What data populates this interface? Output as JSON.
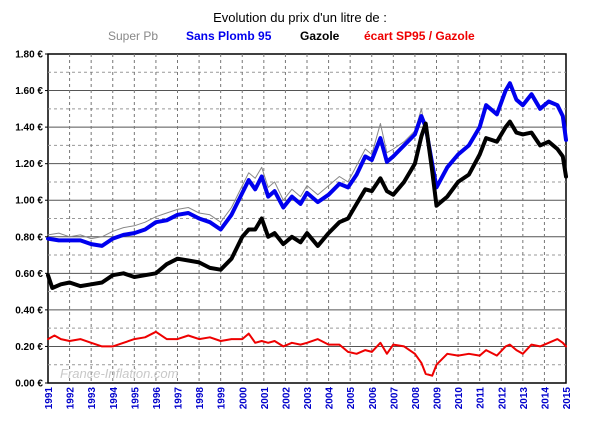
{
  "chart_data": {
    "type": "line",
    "title": "Evolution  du prix d'un litre de :",
    "legend": [
      "Super Pb",
      "Sans Plomb 95",
      "Gazole",
      "écart SP95 / Gazole"
    ],
    "y_ticks": [
      "0.00 €",
      "0.20 €",
      "0.40 €",
      "0.60 €",
      "0.80 €",
      "1.00 €",
      "1.20 €",
      "1.40 €",
      "1.60 €",
      "1.80 €"
    ],
    "x_ticks": [
      "1991",
      "1992",
      "1993",
      "1994",
      "1995",
      "1996",
      "1997",
      "1998",
      "1999",
      "2000",
      "2001",
      "2002",
      "2003",
      "2004",
      "2005",
      "2006",
      "2007",
      "2008",
      "2009",
      "2010",
      "2011",
      "2012",
      "2013",
      "2014",
      "2015"
    ],
    "xlim": [
      1991,
      2015
    ],
    "ylim": [
      0,
      1.8
    ],
    "grid": true,
    "legend_position": "top",
    "watermark": "France-Inflation.com",
    "series": [
      {
        "name": "Super Pb",
        "color": "#888888",
        "width": 1,
        "points": [
          [
            1991.0,
            0.81
          ],
          [
            1991.5,
            0.82
          ],
          [
            1992.0,
            0.8
          ],
          [
            1992.5,
            0.81
          ],
          [
            1993.0,
            0.79
          ],
          [
            1993.5,
            0.8
          ],
          [
            1994.0,
            0.83
          ],
          [
            1994.5,
            0.85
          ],
          [
            1995.0,
            0.86
          ],
          [
            1995.5,
            0.88
          ],
          [
            1996.0,
            0.91
          ],
          [
            1996.5,
            0.93
          ],
          [
            1997.0,
            0.95
          ],
          [
            1997.5,
            0.96
          ],
          [
            1998.0,
            0.93
          ],
          [
            1998.5,
            0.92
          ],
          [
            1999.0,
            0.88
          ],
          [
            1999.5,
            0.96
          ],
          [
            2000.0,
            1.08
          ],
          [
            2000.3,
            1.15
          ],
          [
            2000.6,
            1.12
          ],
          [
            2000.9,
            1.18
          ],
          [
            2001.2,
            1.07
          ],
          [
            2001.5,
            1.1
          ],
          [
            2001.9,
            1.0
          ],
          [
            2002.3,
            1.06
          ],
          [
            2002.7,
            1.02
          ],
          [
            2003.0,
            1.08
          ],
          [
            2003.5,
            1.03
          ],
          [
            2004.0,
            1.08
          ],
          [
            2004.5,
            1.13
          ],
          [
            2004.9,
            1.1
          ],
          [
            2005.3,
            1.19
          ],
          [
            2005.7,
            1.28
          ],
          [
            2006.0,
            1.25
          ],
          [
            2006.4,
            1.42
          ],
          [
            2006.7,
            1.26
          ],
          [
            2007.0,
            1.28
          ],
          [
            2007.5,
            1.32
          ],
          [
            2008.0,
            1.38
          ],
          [
            2008.3,
            1.5
          ],
          [
            2008.6,
            1.3
          ]
        ]
      },
      {
        "name": "Sans Plomb 95",
        "color": "#0000ee",
        "width": 4,
        "points": [
          [
            1991.0,
            0.79
          ],
          [
            1991.5,
            0.78
          ],
          [
            1992.0,
            0.78
          ],
          [
            1992.5,
            0.78
          ],
          [
            1993.0,
            0.76
          ],
          [
            1993.5,
            0.75
          ],
          [
            1994.0,
            0.79
          ],
          [
            1994.5,
            0.81
          ],
          [
            1995.0,
            0.82
          ],
          [
            1995.5,
            0.84
          ],
          [
            1996.0,
            0.88
          ],
          [
            1996.5,
            0.89
          ],
          [
            1997.0,
            0.92
          ],
          [
            1997.5,
            0.93
          ],
          [
            1998.0,
            0.9
          ],
          [
            1998.5,
            0.88
          ],
          [
            1999.0,
            0.84
          ],
          [
            1999.5,
            0.92
          ],
          [
            2000.0,
            1.04
          ],
          [
            2000.3,
            1.11
          ],
          [
            2000.6,
            1.06
          ],
          [
            2000.9,
            1.13
          ],
          [
            2001.2,
            1.02
          ],
          [
            2001.5,
            1.05
          ],
          [
            2001.9,
            0.96
          ],
          [
            2002.3,
            1.02
          ],
          [
            2002.7,
            0.98
          ],
          [
            2003.0,
            1.04
          ],
          [
            2003.5,
            0.99
          ],
          [
            2004.0,
            1.03
          ],
          [
            2004.5,
            1.09
          ],
          [
            2004.9,
            1.07
          ],
          [
            2005.3,
            1.14
          ],
          [
            2005.7,
            1.24
          ],
          [
            2006.0,
            1.22
          ],
          [
            2006.4,
            1.34
          ],
          [
            2006.7,
            1.21
          ],
          [
            2007.0,
            1.24
          ],
          [
            2007.5,
            1.3
          ],
          [
            2008.0,
            1.36
          ],
          [
            2008.3,
            1.46
          ],
          [
            2008.5,
            1.4
          ],
          [
            2008.8,
            1.2
          ],
          [
            2009.0,
            1.07
          ],
          [
            2009.5,
            1.18
          ],
          [
            2010.0,
            1.25
          ],
          [
            2010.5,
            1.3
          ],
          [
            2011.0,
            1.4
          ],
          [
            2011.3,
            1.52
          ],
          [
            2011.8,
            1.47
          ],
          [
            2012.2,
            1.6
          ],
          [
            2012.4,
            1.64
          ],
          [
            2012.7,
            1.55
          ],
          [
            2013.0,
            1.52
          ],
          [
            2013.4,
            1.58
          ],
          [
            2013.8,
            1.5
          ],
          [
            2014.2,
            1.54
          ],
          [
            2014.6,
            1.52
          ],
          [
            2014.85,
            1.46
          ],
          [
            2015.0,
            1.33
          ]
        ]
      },
      {
        "name": "Gazole",
        "color": "#000000",
        "width": 4,
        "points": [
          [
            1991.0,
            0.59
          ],
          [
            1991.2,
            0.52
          ],
          [
            1991.6,
            0.54
          ],
          [
            1992.0,
            0.55
          ],
          [
            1992.5,
            0.53
          ],
          [
            1993.0,
            0.54
          ],
          [
            1993.5,
            0.55
          ],
          [
            1994.0,
            0.59
          ],
          [
            1994.5,
            0.6
          ],
          [
            1995.0,
            0.58
          ],
          [
            1995.5,
            0.59
          ],
          [
            1996.0,
            0.6
          ],
          [
            1996.5,
            0.65
          ],
          [
            1997.0,
            0.68
          ],
          [
            1997.5,
            0.67
          ],
          [
            1998.0,
            0.66
          ],
          [
            1998.5,
            0.63
          ],
          [
            1999.0,
            0.62
          ],
          [
            1999.5,
            0.68
          ],
          [
            2000.0,
            0.8
          ],
          [
            2000.3,
            0.84
          ],
          [
            2000.6,
            0.84
          ],
          [
            2000.9,
            0.9
          ],
          [
            2001.2,
            0.8
          ],
          [
            2001.5,
            0.82
          ],
          [
            2001.9,
            0.76
          ],
          [
            2002.3,
            0.8
          ],
          [
            2002.7,
            0.77
          ],
          [
            2003.0,
            0.82
          ],
          [
            2003.5,
            0.75
          ],
          [
            2004.0,
            0.82
          ],
          [
            2004.5,
            0.88
          ],
          [
            2004.9,
            0.9
          ],
          [
            2005.3,
            0.98
          ],
          [
            2005.7,
            1.06
          ],
          [
            2006.0,
            1.05
          ],
          [
            2006.4,
            1.12
          ],
          [
            2006.7,
            1.05
          ],
          [
            2007.0,
            1.03
          ],
          [
            2007.5,
            1.1
          ],
          [
            2008.0,
            1.2
          ],
          [
            2008.3,
            1.35
          ],
          [
            2008.5,
            1.42
          ],
          [
            2008.8,
            1.16
          ],
          [
            2009.0,
            0.97
          ],
          [
            2009.5,
            1.02
          ],
          [
            2010.0,
            1.1
          ],
          [
            2010.5,
            1.14
          ],
          [
            2011.0,
            1.25
          ],
          [
            2011.3,
            1.34
          ],
          [
            2011.8,
            1.32
          ],
          [
            2012.2,
            1.4
          ],
          [
            2012.4,
            1.43
          ],
          [
            2012.7,
            1.37
          ],
          [
            2013.0,
            1.36
          ],
          [
            2013.4,
            1.37
          ],
          [
            2013.8,
            1.3
          ],
          [
            2014.2,
            1.32
          ],
          [
            2014.6,
            1.28
          ],
          [
            2014.85,
            1.24
          ],
          [
            2015.0,
            1.13
          ]
        ]
      },
      {
        "name": "écart SP95 / Gazole",
        "color": "#ee0000",
        "width": 2,
        "points": [
          [
            1991.0,
            0.24
          ],
          [
            1991.3,
            0.26
          ],
          [
            1991.6,
            0.24
          ],
          [
            1992.0,
            0.23
          ],
          [
            1992.5,
            0.24
          ],
          [
            1993.0,
            0.22
          ],
          [
            1993.5,
            0.2
          ],
          [
            1994.0,
            0.2
          ],
          [
            1994.5,
            0.22
          ],
          [
            1995.0,
            0.24
          ],
          [
            1995.5,
            0.25
          ],
          [
            1996.0,
            0.28
          ],
          [
            1996.5,
            0.24
          ],
          [
            1997.0,
            0.24
          ],
          [
            1997.5,
            0.26
          ],
          [
            1998.0,
            0.24
          ],
          [
            1998.5,
            0.25
          ],
          [
            1999.0,
            0.23
          ],
          [
            1999.5,
            0.24
          ],
          [
            2000.0,
            0.24
          ],
          [
            2000.3,
            0.27
          ],
          [
            2000.6,
            0.22
          ],
          [
            2000.9,
            0.23
          ],
          [
            2001.2,
            0.22
          ],
          [
            2001.5,
            0.23
          ],
          [
            2001.9,
            0.2
          ],
          [
            2002.3,
            0.22
          ],
          [
            2002.7,
            0.21
          ],
          [
            2003.0,
            0.22
          ],
          [
            2003.5,
            0.24
          ],
          [
            2004.0,
            0.21
          ],
          [
            2004.5,
            0.21
          ],
          [
            2004.9,
            0.17
          ],
          [
            2005.3,
            0.16
          ],
          [
            2005.7,
            0.18
          ],
          [
            2006.0,
            0.17
          ],
          [
            2006.4,
            0.22
          ],
          [
            2006.7,
            0.16
          ],
          [
            2007.0,
            0.21
          ],
          [
            2007.5,
            0.2
          ],
          [
            2008.0,
            0.16
          ],
          [
            2008.3,
            0.11
          ],
          [
            2008.5,
            0.05
          ],
          [
            2008.8,
            0.04
          ],
          [
            2009.0,
            0.1
          ],
          [
            2009.5,
            0.16
          ],
          [
            2010.0,
            0.15
          ],
          [
            2010.5,
            0.16
          ],
          [
            2011.0,
            0.15
          ],
          [
            2011.3,
            0.18
          ],
          [
            2011.8,
            0.15
          ],
          [
            2012.2,
            0.2
          ],
          [
            2012.4,
            0.21
          ],
          [
            2012.7,
            0.18
          ],
          [
            2013.0,
            0.16
          ],
          [
            2013.4,
            0.21
          ],
          [
            2013.8,
            0.2
          ],
          [
            2014.2,
            0.22
          ],
          [
            2014.6,
            0.24
          ],
          [
            2014.85,
            0.22
          ],
          [
            2015.0,
            0.2
          ]
        ]
      }
    ]
  }
}
